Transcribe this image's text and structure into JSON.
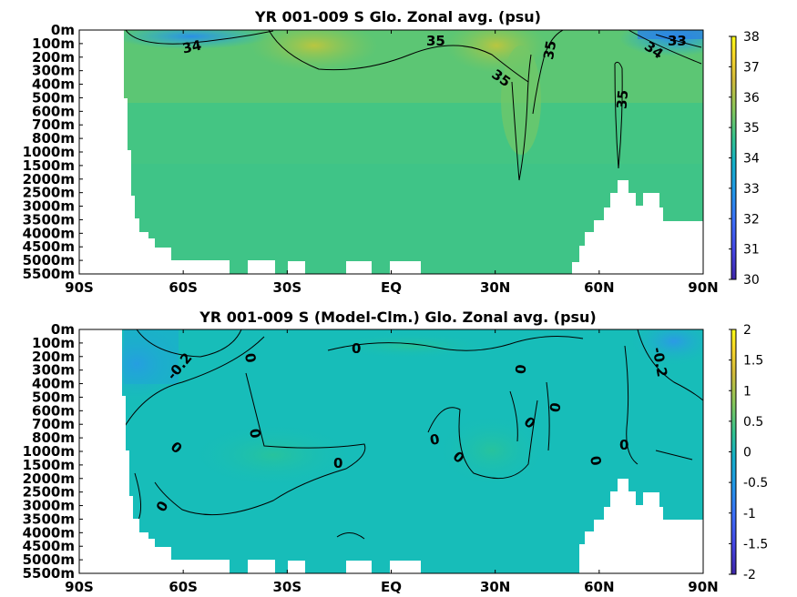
{
  "chart_data": [
    {
      "type": "heatmap",
      "title": "YR 001-009 S Glo. Zonal avg. (psu)",
      "x_tick_labels": [
        "90S",
        "60S",
        "30S",
        "EQ",
        "30N",
        "60N",
        "90N"
      ],
      "x_ticks": [
        -90,
        -60,
        -30,
        0,
        30,
        60,
        90
      ],
      "y_tick_labels": [
        "0m",
        "100m",
        "200m",
        "300m",
        "400m",
        "500m",
        "600m",
        "700m",
        "800m",
        "1000m",
        "1500m",
        "2000m",
        "2500m",
        "3000m",
        "3500m",
        "4000m",
        "4500m",
        "5000m",
        "5500m"
      ],
      "colorbar": {
        "ticks": [
          "30",
          "31",
          "32",
          "33",
          "34",
          "35",
          "36",
          "37",
          "38"
        ],
        "range": [
          30,
          38
        ],
        "colors": [
          "#3e26a8",
          "#4546e4",
          "#3c6ef8",
          "#2196e8",
          "#13b0c8",
          "#33c38f",
          "#87c65a",
          "#d2ba3a",
          "#f9d729",
          "#f9fb15"
        ]
      },
      "contour_labels": [
        "34",
        "35",
        "35",
        "35",
        "35",
        "34",
        "33"
      ],
      "background_color": "#3fc882"
    },
    {
      "type": "heatmap",
      "title": "YR 001-009 S (Model-Clm.) Glo. Zonal avg. (psu)",
      "x_tick_labels": [
        "90S",
        "60S",
        "30S",
        "EQ",
        "30N",
        "60N",
        "90N"
      ],
      "x_ticks": [
        -90,
        -60,
        -30,
        0,
        30,
        60,
        90
      ],
      "y_tick_labels": [
        "0m",
        "100m",
        "200m",
        "300m",
        "400m",
        "500m",
        "600m",
        "700m",
        "800m",
        "1000m",
        "1500m",
        "2000m",
        "2500m",
        "3000m",
        "3500m",
        "4000m",
        "4500m",
        "5000m",
        "5500m"
      ],
      "colorbar": {
        "ticks": [
          "2",
          "1.5",
          "1",
          "0.5",
          "0",
          "-0.5",
          "-1",
          "-1.5",
          "-2"
        ],
        "range": [
          -2,
          2
        ],
        "colors": [
          "#3e26a8",
          "#4546e4",
          "#3c6ef8",
          "#2196e8",
          "#13b0c8",
          "#33c38f",
          "#87c65a",
          "#d2ba3a",
          "#f9d729",
          "#f9fb15"
        ]
      },
      "contour_labels": [
        "-0.2",
        "0",
        "0",
        "0",
        "0",
        "0",
        "0",
        "0",
        "0",
        "0",
        "0",
        "0",
        "0",
        "0",
        "-0.2"
      ],
      "background_color": "#17bdb9"
    }
  ]
}
